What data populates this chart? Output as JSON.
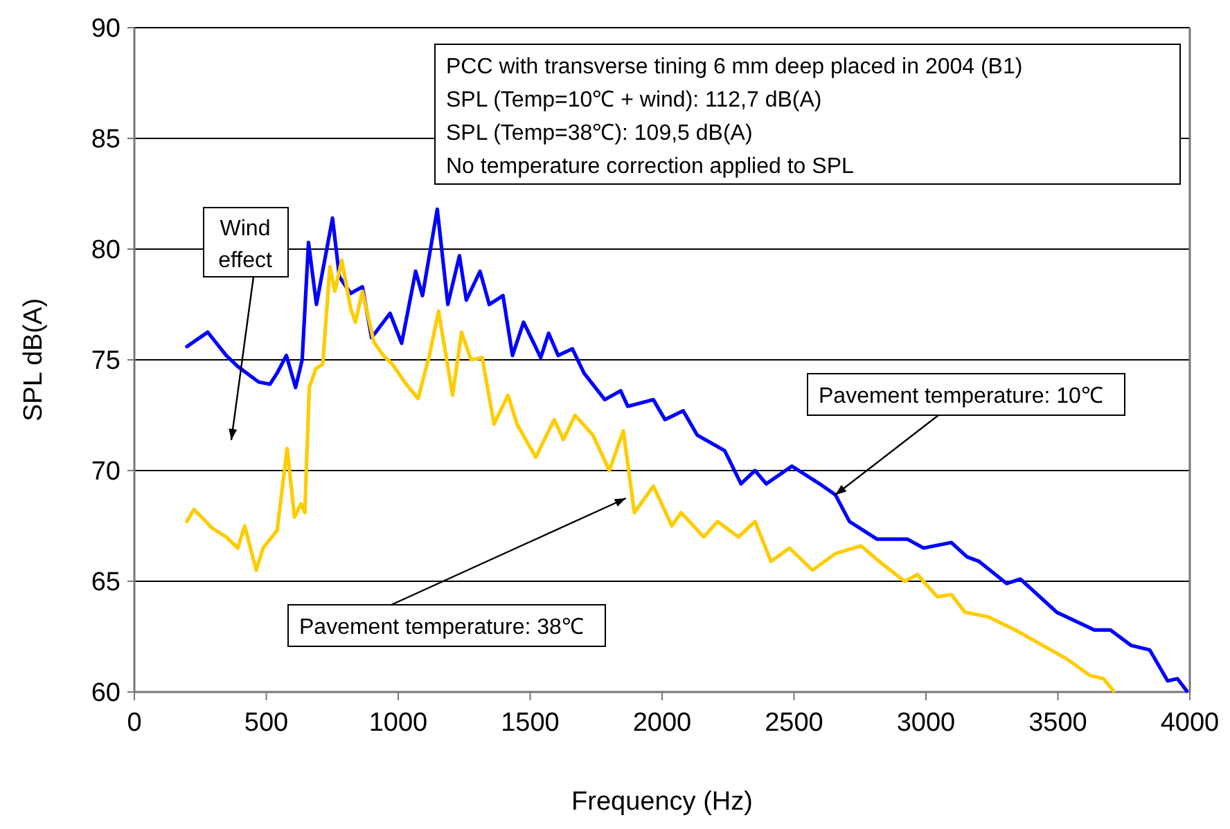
{
  "chart_data": {
    "type": "line",
    "xlabel": "Frequency (Hz)",
    "ylabel": "SPL dB(A)",
    "xlim": [
      0,
      4000
    ],
    "xticks": [
      0,
      500,
      1000,
      1500,
      2000,
      2500,
      3000,
      3500,
      4000
    ],
    "ylim": [
      60,
      90
    ],
    "yticks": [
      60,
      65,
      70,
      75,
      80,
      85,
      90
    ],
    "grid": "y",
    "marker": "none",
    "line_style": "solid",
    "annotations": [
      "PCC with transverse tining 6 mm deep placed in 2004 (B1)",
      "SPL (Temp=10℃ + wind): 112,7 dB(A)",
      "SPL (Temp=38℃): 109,5 dB(A)",
      "No temperature correction applied to SPL",
      "Wind effect",
      {
        "text": "Pavement temperature: 10℃",
        "x": 2656,
        "y": 68.9
      },
      {
        "text": "Pavement temperature: 38℃",
        "x": 1863,
        "y": 68.75
      }
    ],
    "series": [
      {
        "color": "#0000ff",
        "x": [
          199,
          278,
          348,
          392,
          471,
          514,
          541,
          576,
          611,
          636,
          660,
          690,
          751,
          777,
          820,
          864,
          899,
          969,
          1013,
          1066,
          1092,
          1148,
          1188,
          1232,
          1258,
          1310,
          1345,
          1397,
          1433,
          1475,
          1540,
          1570,
          1606,
          1660,
          1704,
          1783,
          1843,
          1870,
          1967,
          2011,
          2080,
          2133,
          2237,
          2299,
          2352,
          2395,
          2492,
          2597,
          2657,
          2710,
          2815,
          2930,
          2991,
          3096,
          3156,
          3201,
          3306,
          3358,
          3496,
          3638,
          3699,
          3778,
          3848,
          3916,
          3953,
          3988
        ],
        "values": [
          75.6,
          76.25,
          75.2,
          74.7,
          74,
          73.9,
          74.4,
          75.2,
          73.75,
          75,
          80.3,
          77.5,
          81.4,
          78.75,
          78,
          78.3,
          76,
          77.1,
          75.75,
          79,
          77.9,
          81.8,
          77.5,
          79.7,
          77.7,
          79,
          77.5,
          77.9,
          75.2,
          76.7,
          75.1,
          76.2,
          75.2,
          75.5,
          74.4,
          73.2,
          73.6,
          72.9,
          73.2,
          72.3,
          72.7,
          71.6,
          70.9,
          69.4,
          70,
          69.4,
          70.2,
          69.4,
          68.9,
          67.7,
          66.9,
          66.9,
          66.5,
          66.75,
          66.1,
          65.9,
          64.9,
          65.1,
          63.6,
          62.8,
          62.8,
          62.1,
          61.9,
          60.5,
          60.6,
          60.05
        ]
      },
      {
        "color": "#ffcc00",
        "x": [
          199,
          226,
          295,
          348,
          392,
          418,
          462,
          488,
          541,
          579,
          607,
          632,
          646,
          663,
          688,
          714,
          741,
          760,
          786,
          820,
          838,
          864,
          908,
          943,
          978,
          1030,
          1075,
          1118,
          1153,
          1206,
          1240,
          1276,
          1318,
          1363,
          1416,
          1450,
          1521,
          1591,
          1626,
          1670,
          1738,
          1800,
          1853,
          1895,
          1967,
          2037,
          2072,
          2158,
          2210,
          2289,
          2352,
          2413,
          2483,
          2570,
          2657,
          2754,
          2833,
          2919,
          2968,
          3043,
          3096,
          3148,
          3234,
          3339,
          3428,
          3533,
          3621,
          3673,
          3711
        ],
        "values": [
          67.7,
          68.25,
          67.4,
          67,
          66.5,
          67.5,
          65.5,
          66.5,
          67.3,
          71,
          67.9,
          68.5,
          68.1,
          73.75,
          74.6,
          74.8,
          79.2,
          78.1,
          79.5,
          77.3,
          76.7,
          78.1,
          75.8,
          75.2,
          74.8,
          73.9,
          73.25,
          75.2,
          77.2,
          73.4,
          76.25,
          75,
          75.1,
          72.1,
          73.4,
          72.1,
          70.6,
          72.3,
          71.4,
          72.5,
          71.6,
          70,
          71.8,
          68.1,
          69.3,
          67.5,
          68.1,
          67,
          67.7,
          67,
          67.7,
          65.9,
          66.5,
          65.5,
          66.25,
          66.6,
          65.8,
          65,
          65.3,
          64.3,
          64.4,
          63.6,
          63.4,
          62.8,
          62.2,
          61.5,
          60.75,
          60.6,
          60.05
        ]
      }
    ]
  }
}
